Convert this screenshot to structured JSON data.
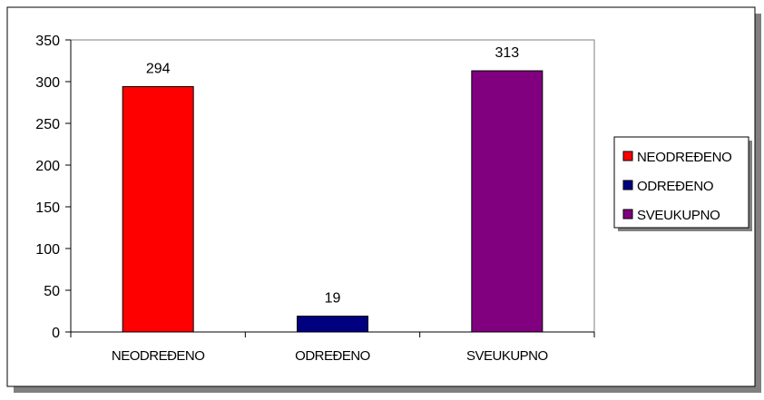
{
  "chart_data": {
    "type": "bar",
    "categories": [
      "NEODREĐENO",
      "ODREĐENO",
      "SVEUKUPNO"
    ],
    "values": [
      294,
      19,
      313
    ],
    "data_labels": [
      "294",
      "19",
      "313"
    ],
    "colors": [
      "#ff0000",
      "#000080",
      "#800080"
    ],
    "title": "",
    "xlabel": "",
    "ylabel": "",
    "ylim": [
      0,
      350
    ],
    "yticks": [
      0,
      50,
      100,
      150,
      200,
      250,
      300,
      350
    ],
    "grid": false,
    "legend": {
      "position": "right",
      "entries": [
        "NEODREĐENO",
        "ODREĐENO",
        "SVEUKUPNO"
      ]
    }
  }
}
